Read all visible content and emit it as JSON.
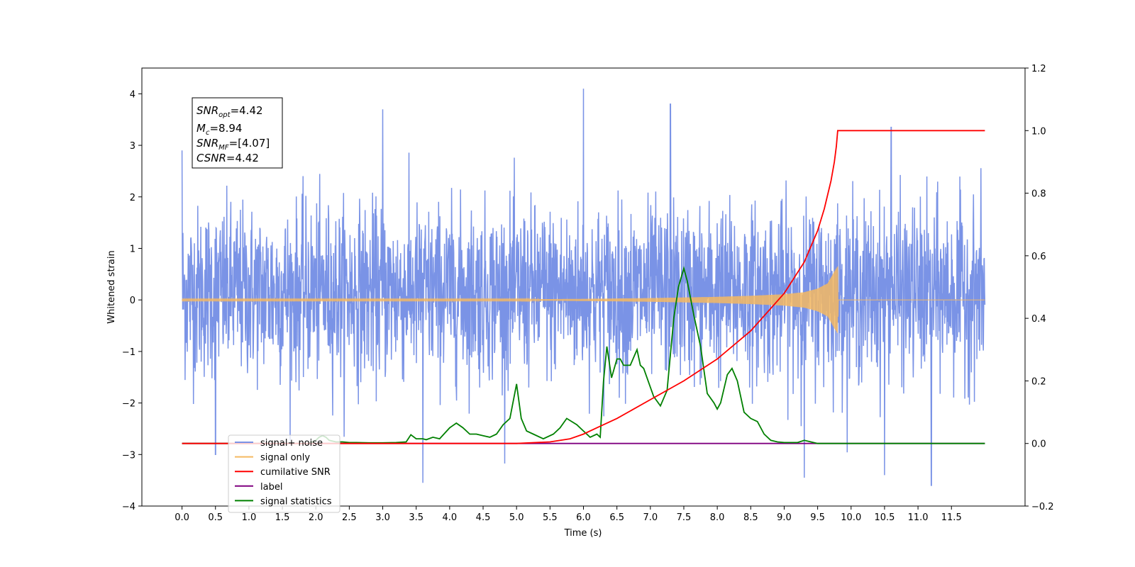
{
  "chart_data": {
    "type": "line",
    "title": "",
    "xlabel": "Time (s)",
    "ylabel": "Whitened strain",
    "ylabel_right": "",
    "xlim": [
      -0.6,
      12.6
    ],
    "ylim": [
      -4,
      4.5
    ],
    "ylim_right": [
      -0.2,
      1.2
    ],
    "xticks": [
      "0.0",
      "0.5",
      "1.0",
      "1.5",
      "2.0",
      "2.5",
      "3.0",
      "3.5",
      "4.0",
      "4.5",
      "5.0",
      "5.5",
      "6.0",
      "6.5",
      "7.0",
      "7.5",
      "8.0",
      "8.5",
      "9.0",
      "9.5",
      "10.0",
      "10.5",
      "11.0",
      "11.5"
    ],
    "yticks_left": [
      "4",
      "3",
      "2",
      "1",
      "0",
      "−1",
      "−2",
      "−3",
      "−4"
    ],
    "yticks_right": [
      "1.2",
      "1.0",
      "0.8",
      "0.6",
      "0.4",
      "0.2",
      "0.0",
      "−0.2"
    ],
    "grid": false,
    "legend_position": "lower-left",
    "annotation": {
      "snr_opt": {
        "base": "SNR",
        "sub": "opt",
        "value": "=4.42"
      },
      "mc": {
        "base": "M",
        "sub": "c",
        "value": "=8.94"
      },
      "snr_mf": {
        "base": "SNR",
        "sub": "MF",
        "value": "=[4.07]"
      },
      "csnr": {
        "base": "CSNR",
        "sub": "",
        "value": "=4.42"
      }
    },
    "series": [
      {
        "name": "signal+ noise",
        "color": "#7a93e6",
        "axis": "left",
        "x_range": [
          0.0,
          12.0
        ],
        "envelope_typical": [
          -2.0,
          2.3
        ],
        "peaks": [
          [
            0.0,
            2.9
          ],
          [
            3.0,
            3.7
          ],
          [
            6.0,
            4.1
          ],
          [
            7.3,
            3.8
          ],
          [
            10.6,
            3.35
          ],
          [
            3.6,
            -3.55
          ],
          [
            9.3,
            -3.45
          ],
          [
            11.2,
            -3.6
          ],
          [
            10.5,
            -3.4
          ],
          [
            0.5,
            -3.0
          ]
        ]
      },
      {
        "name": "signal only",
        "color": "#f5b961",
        "axis": "left",
        "x": [
          0.0,
          5.0,
          6.0,
          7.0,
          8.0,
          8.5,
          9.0,
          9.3,
          9.5,
          9.65,
          9.75,
          9.8,
          9.81,
          12.0
        ],
        "amplitude": [
          0.01,
          0.01,
          0.02,
          0.035,
          0.06,
          0.08,
          0.11,
          0.15,
          0.22,
          0.32,
          0.55,
          0.65,
          0.0,
          0.0
        ]
      },
      {
        "name": "cumilative SNR",
        "color": "#ff0000",
        "axis": "right",
        "x": [
          0.0,
          5.0,
          5.5,
          5.8,
          6.0,
          6.2,
          6.5,
          7.0,
          7.5,
          8.0,
          8.5,
          9.0,
          9.3,
          9.5,
          9.6,
          9.7,
          9.75,
          9.78,
          9.8,
          12.0
        ],
        "y": [
          0.0,
          0.0,
          0.005,
          0.015,
          0.03,
          0.05,
          0.08,
          0.14,
          0.2,
          0.27,
          0.36,
          0.48,
          0.58,
          0.68,
          0.75,
          0.84,
          0.9,
          0.95,
          1.0,
          1.0
        ]
      },
      {
        "name": "label",
        "color": "#800080",
        "axis": "right",
        "x": [
          0.0,
          12.0
        ],
        "y": [
          0.0,
          0.0
        ]
      },
      {
        "name": "signal statistics",
        "color": "#008000",
        "axis": "right",
        "x": [
          0.0,
          1.9,
          2.0,
          2.05,
          2.1,
          2.15,
          2.2,
          2.3,
          2.4,
          2.5,
          2.6,
          2.8,
          3.0,
          3.2,
          3.35,
          3.42,
          3.5,
          3.6,
          3.65,
          3.75,
          3.85,
          4.0,
          4.1,
          4.2,
          4.3,
          4.4,
          4.5,
          4.6,
          4.7,
          4.8,
          4.9,
          5.0,
          5.07,
          5.15,
          5.25,
          5.4,
          5.55,
          5.65,
          5.75,
          5.9,
          6.0,
          6.1,
          6.2,
          6.25,
          6.3,
          6.35,
          6.42,
          6.5,
          6.55,
          6.6,
          6.7,
          6.8,
          6.85,
          6.9,
          7.0,
          7.05,
          7.15,
          7.25,
          7.35,
          7.42,
          7.5,
          7.55,
          7.65,
          7.75,
          7.85,
          7.95,
          8.0,
          8.05,
          8.15,
          8.22,
          8.3,
          8.4,
          8.5,
          8.6,
          8.7,
          8.8,
          8.9,
          9.0,
          9.2,
          9.3,
          9.4,
          9.5,
          12.0
        ],
        "y": [
          0.0,
          0.0,
          0.01,
          0.02,
          0.025,
          0.02,
          0.01,
          0.005,
          0.005,
          0.003,
          0.003,
          0.002,
          0.002,
          0.003,
          0.005,
          0.028,
          0.015,
          0.015,
          0.012,
          0.02,
          0.015,
          0.05,
          0.065,
          0.05,
          0.03,
          0.03,
          0.025,
          0.02,
          0.03,
          0.06,
          0.08,
          0.19,
          0.08,
          0.04,
          0.03,
          0.015,
          0.03,
          0.05,
          0.08,
          0.06,
          0.04,
          0.02,
          0.03,
          0.02,
          0.2,
          0.31,
          0.21,
          0.27,
          0.27,
          0.25,
          0.25,
          0.3,
          0.25,
          0.24,
          0.18,
          0.15,
          0.12,
          0.17,
          0.4,
          0.5,
          0.56,
          0.52,
          0.41,
          0.31,
          0.16,
          0.13,
          0.11,
          0.13,
          0.22,
          0.24,
          0.2,
          0.1,
          0.08,
          0.07,
          0.03,
          0.01,
          0.005,
          0.003,
          0.003,
          0.01,
          0.005,
          0.0,
          0.0
        ]
      }
    ]
  }
}
